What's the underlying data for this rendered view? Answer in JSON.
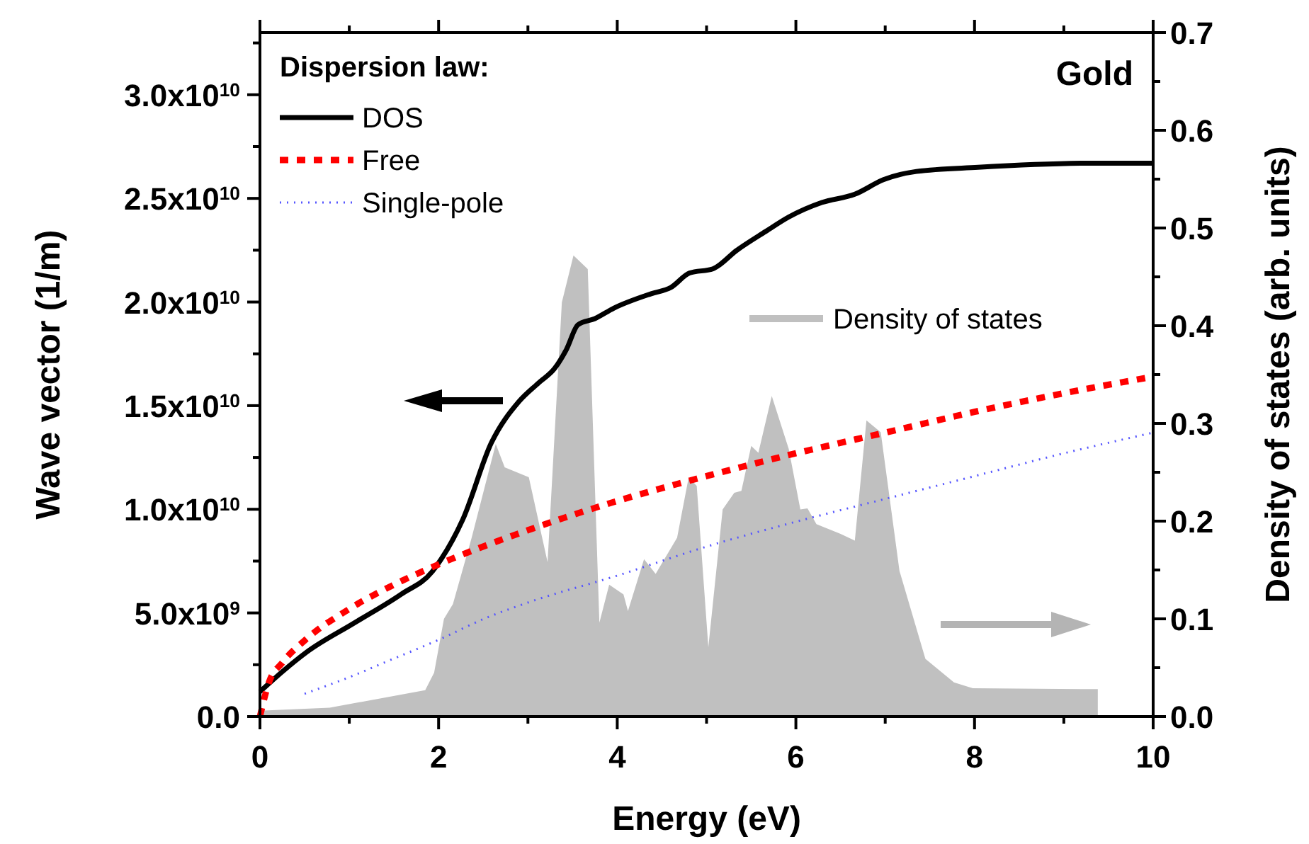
{
  "chart_data": {
    "type": "line",
    "xlabel": "Energy (eV)",
    "ylabel": "Wave vector (1/m)",
    "y2label": "Density of states (arb. units)",
    "legend_title": "Dispersion law:",
    "legend": "top left",
    "annotations": [
      "Gold"
    ],
    "xlim": [
      0,
      10
    ],
    "ylim": [
      0,
      33000000000.0
    ],
    "y2lim": [
      0,
      0.7
    ],
    "xticks": [
      0,
      {
        "value": 1,
        "label": null
      },
      2,
      {
        "value": 3,
        "label": null
      },
      4,
      {
        "value": 5,
        "label": null
      },
      6,
      {
        "value": 7,
        "label": null
      },
      8,
      {
        "value": 9,
        "label": null
      },
      10
    ],
    "yticks": [
      {
        "value": 0,
        "label": "0.0"
      },
      {
        "value": 2500000000.0,
        "label": null
      },
      {
        "value": 5000000000.0,
        "label": "5.0x10$^{9}$"
      },
      {
        "value": 7500000000.0,
        "label": null
      },
      {
        "value": 10000000000.0,
        "label": "1.0x10$^{10}$"
      },
      {
        "value": 12500000000.0,
        "label": null
      },
      {
        "value": 15000000000.0,
        "label": "1.5x10$^{10}$"
      },
      {
        "value": 17500000000.0,
        "label": null
      },
      {
        "value": 20000000000.0,
        "label": "2.0x10$^{10}$"
      },
      {
        "value": 22500000000.0,
        "label": null
      },
      {
        "value": 25000000000.0,
        "label": "2.5x10$^{10}$"
      },
      {
        "value": 27500000000.0,
        "label": null
      },
      {
        "value": 30000000000.0,
        "label": "3.0x10$^{10}$"
      },
      {
        "value": 32500000000.0,
        "label": null
      }
    ],
    "y2ticks": [
      {
        "value": 0,
        "label": "0.0"
      },
      {
        "value": 0.05,
        "label": null
      },
      0.1,
      {
        "value": 0.15,
        "label": null
      },
      0.2,
      {
        "value": 0.25,
        "label": null
      },
      0.3,
      {
        "value": 0.35,
        "label": null
      },
      0.4,
      {
        "value": 0.45,
        "label": null
      },
      0.5,
      {
        "value": 0.55,
        "label": null
      },
      0.6,
      {
        "value": 0.65,
        "label": null
      },
      0.7
    ],
    "series": [
      {
        "name": "Density of states",
        "type": "area",
        "axis": "y2",
        "color": "#c0c0c0",
        "x": [
          0,
          0.78,
          1.85,
          1.95,
          2.06,
          2.16,
          2.37,
          2.64,
          2.74,
          3.01,
          3.22,
          3.38,
          3.51,
          3.67,
          3.8,
          3.91,
          4.07,
          4.12,
          4.3,
          4.43,
          4.67,
          4.8,
          4.89,
          5.02,
          5.18,
          5.31,
          5.39,
          5.5,
          5.58,
          5.73,
          5.92,
          6.05,
          6.13,
          6.23,
          6.5,
          6.66,
          6.79,
          6.95,
          7.16,
          7.45,
          7.77,
          7.98,
          9.36,
          9.38
        ],
        "values": [
          0.006,
          0.009,
          0.027,
          0.045,
          0.1,
          0.115,
          0.183,
          0.279,
          0.255,
          0.245,
          0.158,
          0.424,
          0.472,
          0.458,
          0.096,
          0.135,
          0.125,
          0.108,
          0.161,
          0.146,
          0.183,
          0.245,
          0.236,
          0.071,
          0.212,
          0.229,
          0.231,
          0.277,
          0.27,
          0.328,
          0.274,
          0.212,
          0.213,
          0.197,
          0.187,
          0.18,
          0.303,
          0.291,
          0.149,
          0.059,
          0.035,
          0.029,
          0.028,
          0.028
        ]
      },
      {
        "name": "DOS",
        "color": "#000000",
        "line_style": "solid",
        "x": [
          0,
          0.26,
          0.52,
          1.05,
          1.58,
          1.93,
          2.03,
          2.27,
          2.59,
          2.9,
          3.12,
          3.3,
          3.43,
          3.56,
          3.75,
          3.96,
          4.38,
          4.6,
          4.81,
          5.07,
          5.34,
          5.66,
          5.92,
          6.29,
          6.66,
          6.98,
          7.35,
          8.04,
          9.36,
          10
        ],
        "values": [
          1200000000.0,
          2200000000.0,
          3100000000.0,
          4500000000.0,
          5900000000.0,
          7000000000.0,
          7600000000.0,
          9500000000.0,
          13200000000.0,
          15200000000.0,
          16100000000.0,
          16800000000.0,
          17700000000.0,
          18900000000.0,
          19200000000.0,
          19700000000.0,
          20400000000.0,
          20700000000.0,
          21400000000.0,
          21600000000.0,
          22500000000.0,
          23400000000.0,
          24100000000.0,
          24800000000.0,
          25200000000.0,
          25900000000.0,
          26300000000.0,
          26500000000.0,
          26700000000.0,
          26700000000.0
        ]
      },
      {
        "name": "Free",
        "color": "#ff0000",
        "line_style": "dashed",
        "x": [
          0,
          0.1,
          0.25,
          0.5,
          1,
          1.5,
          2,
          3,
          4,
          5,
          6,
          7,
          8,
          9,
          10
        ],
        "values": [
          0,
          1640000000.0,
          2600000000.0,
          3670000000.0,
          5190000000.0,
          6360000000.0,
          7340000000.0,
          8990000000.0,
          10400000000.0,
          11600000000.0,
          12700000000.0,
          13700000000.0,
          14700000000.0,
          15600000000.0,
          16400000000.0
        ]
      },
      {
        "name": "Single-pole",
        "color": "#5555ff",
        "line_style": "dotted",
        "x": [
          0.5,
          1,
          1.5,
          2,
          2.5,
          3,
          4,
          5,
          6,
          7,
          8,
          9,
          10
        ],
        "values": [
          1100000000.0,
          1900000000.0,
          2800000000.0,
          3700000000.0,
          4700000000.0,
          5500000000.0,
          6800000000.0,
          8200000000.0,
          9400000000.0,
          10500000000.0,
          11600000000.0,
          12700000000.0,
          13700000000.0
        ]
      }
    ]
  }
}
